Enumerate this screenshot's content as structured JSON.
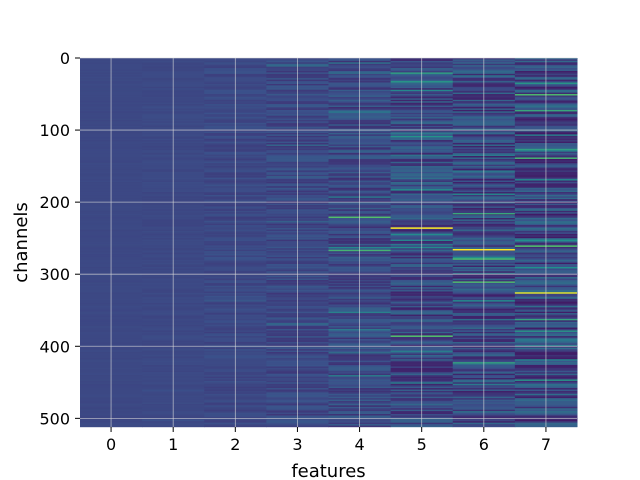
{
  "chart_data": {
    "type": "heatmap",
    "title": "",
    "xlabel": "features",
    "ylabel": "channels",
    "x_ticks": [
      0,
      1,
      2,
      3,
      4,
      5,
      6,
      7
    ],
    "y_ticks": [
      0,
      100,
      200,
      300,
      400,
      500
    ],
    "xlim": [
      -0.5,
      7.5
    ],
    "ylim": [
      512,
      0
    ],
    "n_rows": 512,
    "n_cols": 8,
    "grid": true,
    "colormap": "viridis",
    "colormap_stops": [
      "#440154",
      "#3b528b",
      "#21918c",
      "#5ec962",
      "#fde725"
    ],
    "background_value": 0.22,
    "column_noise_level": [
      0.01,
      0.02,
      0.05,
      0.09,
      0.14,
      0.2,
      0.22,
      0.24
    ],
    "highlights": [
      {
        "col": 5,
        "channel": 235,
        "value": 1.0
      },
      {
        "col": 6,
        "channel": 265,
        "value": 1.0
      },
      {
        "col": 7,
        "channel": 325,
        "value": 0.95
      },
      {
        "col": 4,
        "channel": 220,
        "value": 0.7
      },
      {
        "col": 4,
        "channel": 266,
        "value": 0.65
      },
      {
        "col": 7,
        "channel": 260,
        "value": 0.7
      },
      {
        "col": 7,
        "channel": 138,
        "value": 0.65
      },
      {
        "col": 5,
        "channel": 385,
        "value": 0.7
      },
      {
        "col": 6,
        "channel": 215,
        "value": 0.6
      },
      {
        "col": 7,
        "channel": 72,
        "value": 0.6
      }
    ]
  }
}
